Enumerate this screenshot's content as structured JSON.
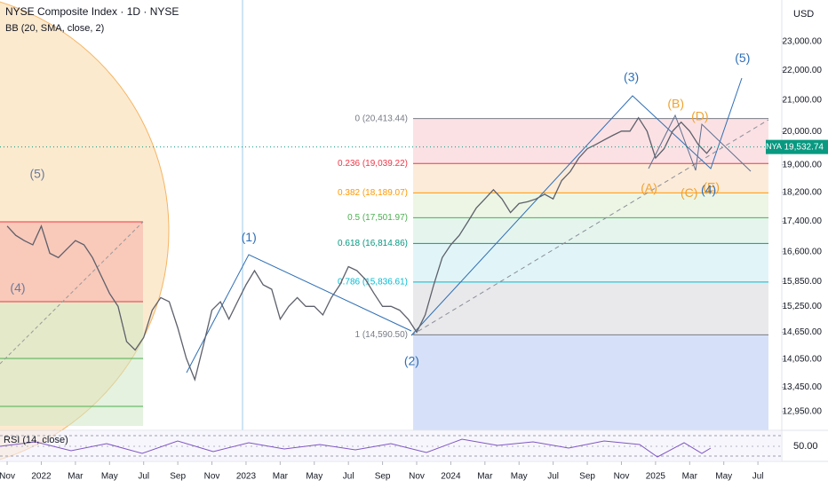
{
  "chart_data": {
    "type": "line",
    "title": "NYSE Composite Index · 1D · NYSE",
    "subtitle": "BB (20, SMA, close, 2)",
    "y_axis_label": "USD",
    "log_scale": true,
    "grid": false,
    "xlim": [
      -0.42,
      45.4
    ],
    "ylim": [
      12580,
      24540
    ],
    "xticks": [
      {
        "value": 0,
        "label": "Nov"
      },
      {
        "value": 2,
        "label": "2022"
      },
      {
        "value": 4,
        "label": "Mar"
      },
      {
        "value": 6,
        "label": "May"
      },
      {
        "value": 8,
        "label": "Jul"
      },
      {
        "value": 10,
        "label": "Sep"
      },
      {
        "value": 12,
        "label": "Nov"
      },
      {
        "value": 14,
        "label": "2023"
      },
      {
        "value": 16,
        "label": "Mar"
      },
      {
        "value": 18,
        "label": "May"
      },
      {
        "value": 20,
        "label": "Jul"
      },
      {
        "value": 22,
        "label": "Sep"
      },
      {
        "value": 24,
        "label": "Nov"
      },
      {
        "value": 26,
        "label": "2024"
      },
      {
        "value": 28,
        "label": "Mar"
      },
      {
        "value": 30,
        "label": "May"
      },
      {
        "value": 32,
        "label": "Jul"
      },
      {
        "value": 34,
        "label": "Sep"
      },
      {
        "value": 36,
        "label": "Nov"
      },
      {
        "value": 38,
        "label": "2025"
      },
      {
        "value": 40,
        "label": "Mar"
      },
      {
        "value": 42,
        "label": "May"
      },
      {
        "value": 44,
        "label": "Jul"
      }
    ],
    "yticks": [
      {
        "value": 23000,
        "label": "23,000.00"
      },
      {
        "value": 22000,
        "label": "22,000.00"
      },
      {
        "value": 21000,
        "label": "21,000.00"
      },
      {
        "value": 20000,
        "label": "20,000.00"
      },
      {
        "value": 19000,
        "label": "19,000.00"
      },
      {
        "value": 18200,
        "label": "18,200.00"
      },
      {
        "value": 17400,
        "label": "17,400.00"
      },
      {
        "value": 16600,
        "label": "16,600.00"
      },
      {
        "value": 15850,
        "label": "15,850.00"
      },
      {
        "value": 15250,
        "label": "15,250.00"
      },
      {
        "value": 14650,
        "label": "14,650.00"
      },
      {
        "value": 14050,
        "label": "14,050.00"
      },
      {
        "value": 13450,
        "label": "13,450.00"
      },
      {
        "value": 12950,
        "label": "12,950.00"
      }
    ],
    "series": [
      {
        "name": "NYA",
        "color": "#5d606b",
        "x": [
          0,
          0.5,
          1,
          1.5,
          2,
          2.5,
          3,
          3.5,
          4,
          4.5,
          5,
          5.5,
          6,
          6.5,
          7,
          7.5,
          8,
          8.5,
          9,
          9.5,
          10,
          10.5,
          11,
          11.5,
          12,
          12.5,
          13,
          13.5,
          14,
          14.5,
          15,
          15.5,
          16,
          16.5,
          17,
          17.5,
          18,
          18.5,
          19,
          19.5,
          20,
          20.5,
          21,
          21.5,
          22,
          22.5,
          23,
          23.5,
          24,
          24.5,
          25,
          25.5,
          26,
          26.5,
          27,
          27.5,
          28,
          28.5,
          29,
          29.5,
          30,
          30.5,
          31,
          31.5,
          32,
          32.5,
          33,
          33.5,
          34,
          34.5,
          35,
          35.5,
          36,
          36.5,
          37,
          37.5,
          38,
          38.5,
          39,
          39.5,
          40,
          40.5,
          41,
          41.3
        ],
        "values": [
          17275,
          17030,
          16890,
          16780,
          17275,
          16560,
          16450,
          16670,
          16890,
          16780,
          16450,
          16000,
          15560,
          15250,
          14440,
          14250,
          14530,
          15160,
          15460,
          15360,
          14750,
          14070,
          13610,
          14350,
          15160,
          15360,
          14950,
          15360,
          15770,
          16120,
          15770,
          15660,
          14950,
          15250,
          15460,
          15250,
          15250,
          15050,
          15460,
          15770,
          16220,
          16120,
          15900,
          15560,
          15250,
          15250,
          15160,
          14950,
          14650,
          15050,
          15770,
          16450,
          16780,
          17030,
          17390,
          17770,
          18020,
          18280,
          18020,
          17640,
          17890,
          17940,
          18020,
          18150,
          18020,
          18540,
          18800,
          19200,
          19480,
          19610,
          19750,
          19890,
          20020,
          20020,
          20440,
          20020,
          19200,
          19480,
          20020,
          20300,
          20020,
          19610,
          19340,
          19532.74
        ]
      }
    ],
    "last_price": {
      "name": "NYA",
      "value": 19532.74,
      "label": "19,532.74"
    },
    "fib_levels": [
      {
        "label": "0 (20,413.44)",
        "value": 20413.44,
        "color": "#787b86",
        "fill": "#fadadd"
      },
      {
        "label": "0.236 (19,039.22)",
        "value": 19039.22,
        "color": "#f23645",
        "fill": "#fde6cf"
      },
      {
        "label": "0.382 (18,189.07)",
        "value": 18189.07,
        "color": "#ff9800",
        "fill": "#e8f4de"
      },
      {
        "label": "0.5 (17,501.97)",
        "value": 17501.97,
        "color": "#4caf50",
        "fill": "#def3ea"
      },
      {
        "label": "0.618 (16,814.86)",
        "value": 16814.86,
        "color": "#089981",
        "fill": "#d9f3f6"
      },
      {
        "label": "0.786 (15,836.61)",
        "value": 15836.61,
        "color": "#00bcd4",
        "fill": "#e4e4e6"
      },
      {
        "label": "1 (14,590.50)",
        "value": 14590.5,
        "color": "#787b86",
        "fill": "#ccd9f8"
      }
    ],
    "annotations": [
      {
        "text": "(5)",
        "x": 1.77,
        "y": 18710,
        "color": "#6b7b99"
      },
      {
        "text": "(4)",
        "x": 0.62,
        "y": 15680,
        "color": "#6b7b99"
      },
      {
        "text": "(1)",
        "x": 14.17,
        "y": 16960,
        "color": "#2f6fb5"
      },
      {
        "text": "(2)",
        "x": 23.71,
        "y": 13990,
        "color": "#2f6fb5"
      },
      {
        "text": "(3)",
        "x": 36.58,
        "y": 21740,
        "color": "#2f6fb5"
      },
      {
        "text": "(5)",
        "x": 43.1,
        "y": 22400,
        "color": "#2f6fb5"
      },
      {
        "text": "(B)",
        "x": 39.19,
        "y": 20860,
        "color": "#f0a22e"
      },
      {
        "text": "(D)",
        "x": 40.6,
        "y": 20460,
        "color": "#f0a22e"
      },
      {
        "text": "(A)",
        "x": 37.62,
        "y": 18300,
        "color": "#f0a22e"
      },
      {
        "text": "(C)",
        "x": 39.97,
        "y": 18170,
        "color": "#f0a22e"
      },
      {
        "text": "(E)",
        "x": 41.27,
        "y": 18330,
        "color": "#f0a22e"
      },
      {
        "text": "(4)",
        "x": 41.11,
        "y": 18250,
        "color": "#2f6fb5"
      }
    ],
    "rsi": {
      "title": "RSI (14, close)",
      "level_label": "50.00"
    }
  }
}
